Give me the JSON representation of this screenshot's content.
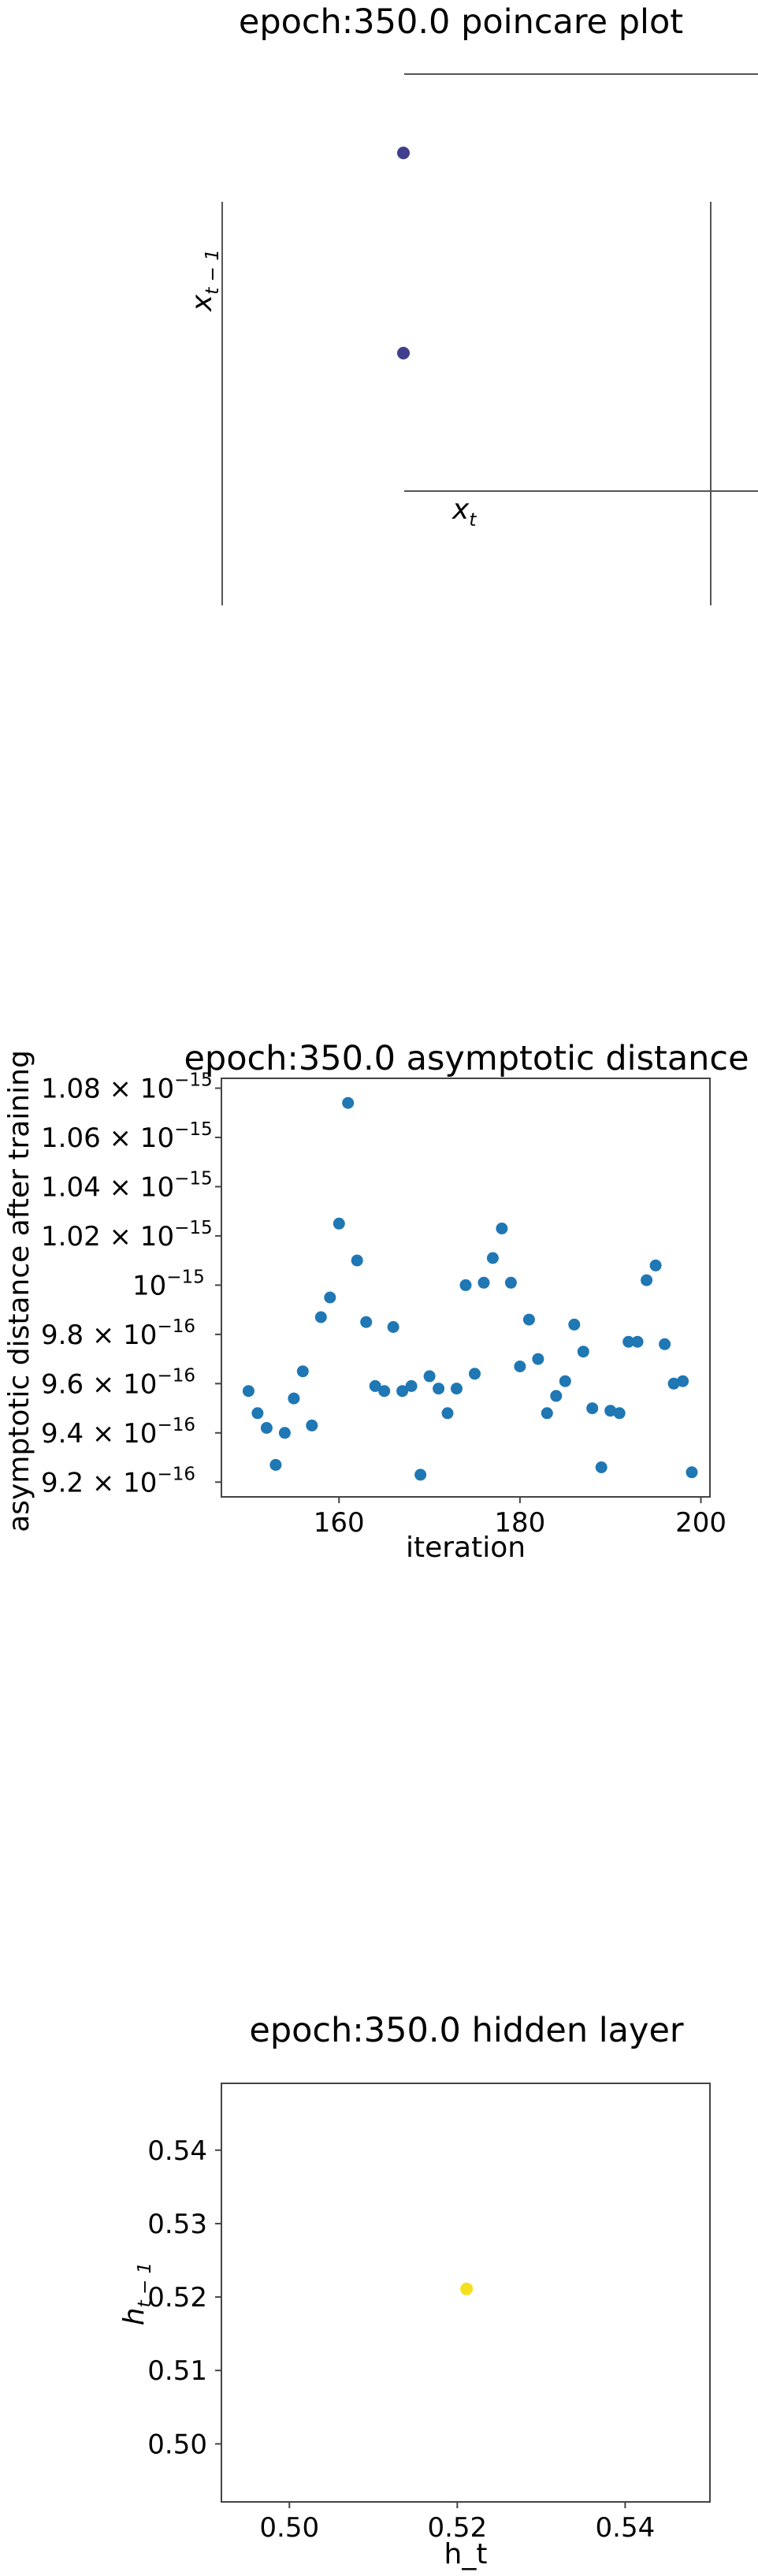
{
  "chart_data": [
    {
      "type": "scatter",
      "title": "epoch:350.0 poincare plot",
      "xlabel": "x_t",
      "ylabel": "x_{t-1}",
      "grid": false,
      "colors": {
        "points": "#3f3f8c"
      },
      "points": [
        {
          "x": 0.0,
          "y": 1.0
        },
        {
          "x": 0.0,
          "y": 0.0
        }
      ]
    },
    {
      "type": "scatter",
      "title": "epoch:350.0 asymptotic distance",
      "xlabel": "iteration",
      "ylabel": "asymptotic distance after training",
      "grid": false,
      "colors": {
        "points": "#1f77b4"
      },
      "xlim": [
        147,
        201
      ],
      "ylim": [
        9.14e-16,
        1.084e-15
      ],
      "xticks": [
        {
          "value": 160,
          "label": "160"
        },
        {
          "value": 180,
          "label": "180"
        },
        {
          "value": 200,
          "label": "200"
        }
      ],
      "yticks": [
        {
          "value": 9.2e-16,
          "mantissa": "9.2",
          "exp": "−16"
        },
        {
          "value": 9.4e-16,
          "mantissa": "9.4",
          "exp": "−16"
        },
        {
          "value": 9.6e-16,
          "mantissa": "9.6",
          "exp": "−16"
        },
        {
          "value": 9.8e-16,
          "mantissa": "9.8",
          "exp": "−16"
        },
        {
          "value": 1e-15,
          "mantissa": "",
          "exp": "−15"
        },
        {
          "value": 1.02e-15,
          "mantissa": "1.02",
          "exp": "−15"
        },
        {
          "value": 1.04e-15,
          "mantissa": "1.04",
          "exp": "−15"
        },
        {
          "value": 1.06e-15,
          "mantissa": "1.06",
          "exp": "−15"
        },
        {
          "value": 1.08e-15,
          "mantissa": "1.08",
          "exp": "−15"
        }
      ],
      "x": [
        150,
        151,
        152,
        153,
        154,
        155,
        156,
        157,
        158,
        159,
        160,
        161,
        162,
        163,
        164,
        165,
        166,
        167,
        168,
        169,
        170,
        171,
        172,
        173,
        174,
        175,
        176,
        177,
        178,
        179,
        180,
        181,
        182,
        183,
        184,
        185,
        186,
        187,
        188,
        189,
        190,
        191,
        192,
        193,
        194,
        195,
        196,
        197,
        198,
        199
      ],
      "y": [
        9.57e-16,
        9.48e-16,
        9.42e-16,
        9.27e-16,
        9.4e-16,
        9.54e-16,
        9.65e-16,
        9.43e-16,
        9.87e-16,
        9.95e-16,
        1.025e-15,
        1.074e-15,
        1.01e-15,
        9.85e-16,
        9.59e-16,
        9.57e-16,
        9.83e-16,
        9.57e-16,
        9.59e-16,
        9.23e-16,
        9.63e-16,
        9.58e-16,
        9.48e-16,
        9.58e-16,
        1e-15,
        9.64e-16,
        1.001e-15,
        1.011e-15,
        1.023e-15,
        1.001e-15,
        9.67e-16,
        9.86e-16,
        9.7e-16,
        9.48e-16,
        9.55e-16,
        9.61e-16,
        9.84e-16,
        9.73e-16,
        9.5e-16,
        9.26e-16,
        9.49e-16,
        9.48e-16,
        9.77e-16,
        9.77e-16,
        1.002e-15,
        1.008e-15,
        9.76e-16,
        9.6e-16,
        9.61e-16,
        9.24e-16
      ]
    },
    {
      "type": "scatter",
      "title": "epoch:350.0 hidden layer",
      "xlabel": "h_t",
      "ylabel": "h_{t-1}",
      "grid": false,
      "colors": {
        "points": "#f5e020"
      },
      "xlim": [
        0.4919,
        0.5501
      ],
      "ylim": [
        0.4921,
        0.5491
      ],
      "xticks": [
        0.5,
        0.52,
        0.54
      ],
      "yticks": [
        0.5,
        0.51,
        0.52,
        0.53,
        0.54
      ],
      "points": [
        {
          "x": 0.5211,
          "y": 0.5211
        }
      ]
    }
  ]
}
